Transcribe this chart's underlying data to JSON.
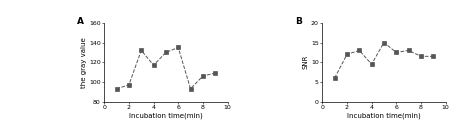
{
  "panel_A": {
    "label": "A",
    "x": [
      1,
      2,
      3,
      4,
      5,
      6,
      7,
      8,
      9
    ],
    "y": [
      93,
      97,
      132,
      117,
      130,
      135,
      93,
      106,
      109
    ],
    "xlabel": "Incubation time(min)",
    "ylabel": "the gray value",
    "ylim": [
      80,
      160
    ],
    "yticks": [
      80,
      100,
      120,
      140,
      160
    ],
    "xlim": [
      0,
      10
    ],
    "xticks": [
      0,
      2,
      4,
      6,
      8,
      10
    ]
  },
  "panel_B": {
    "label": "B",
    "x": [
      1,
      2,
      3,
      4,
      5,
      6,
      7,
      8,
      9
    ],
    "y": [
      6,
      12,
      13,
      9.5,
      15,
      12.5,
      13,
      11.5,
      11.5
    ],
    "xlabel": "Incubation time(min)",
    "ylabel": "SNR",
    "ylim": [
      0,
      20
    ],
    "yticks": [
      0,
      5,
      10,
      15,
      20
    ],
    "xlim": [
      0,
      10
    ],
    "xticks": [
      0,
      2,
      4,
      6,
      8,
      10
    ]
  },
  "line_color": "#555555",
  "marker": "s",
  "marker_size": 2.2,
  "line_style": "--",
  "line_width": 0.7,
  "font_size": 4.5,
  "label_font_size": 5.0,
  "panel_label_font_size": 6.5,
  "background_color": "#ffffff"
}
